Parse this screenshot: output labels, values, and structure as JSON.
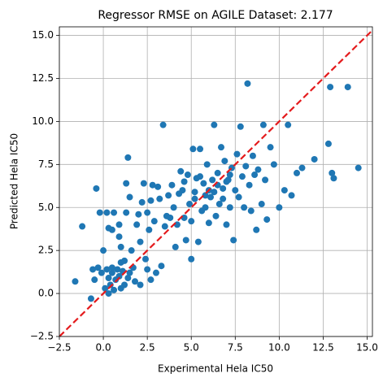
{
  "chart_data": {
    "type": "scatter",
    "title": "Regressor RMSE on AGILE Dataset: 2.177",
    "xlabel": "Experimental Hela IC50",
    "ylabel": "Predicted Hela IC50",
    "color": "#1f77b4",
    "reference_color": "#e41a1c",
    "grid": true,
    "xlim": [
      -2.5,
      15.3
    ],
    "ylim": [
      -2.5,
      15.5
    ],
    "xticks": [
      {
        "value": -2.5,
        "label": "−2.5"
      },
      {
        "value": 0,
        "label": "0.0"
      },
      {
        "value": 2.5,
        "label": "2.5"
      },
      {
        "value": 5,
        "label": "5.0"
      },
      {
        "value": 7.5,
        "label": "7.5"
      },
      {
        "value": 10,
        "label": "10.0"
      },
      {
        "value": 12.5,
        "label": "12.5"
      },
      {
        "value": 15,
        "label": "15.0"
      }
    ],
    "yticks": [
      {
        "value": -2.5,
        "label": "−2.5"
      },
      {
        "value": 0,
        "label": "0.0"
      },
      {
        "value": 2.5,
        "label": "2.5"
      },
      {
        "value": 5,
        "label": "5.0"
      },
      {
        "value": 7.5,
        "label": "7.5"
      },
      {
        "value": 10,
        "label": "10.0"
      },
      {
        "value": 12.5,
        "label": "12.5"
      },
      {
        "value": 15,
        "label": "15.0"
      }
    ],
    "x": [
      -1.6,
      -1.2,
      -0.7,
      -0.5,
      -0.4,
      -0.3,
      -0.2,
      0.0,
      -0.1,
      0.2,
      0.3,
      0.5,
      0.6,
      0.8,
      0.9,
      0.9,
      1.0,
      1.0,
      1.2,
      1.3,
      1.3,
      1.4,
      1.5,
      1.6,
      1.7,
      1.8,
      1.9,
      2.0,
      2.1,
      2.2,
      2.3,
      2.4,
      2.5,
      2.5,
      2.6,
      2.7,
      2.8,
      2.9,
      3.0,
      3.1,
      3.2,
      3.3,
      3.4,
      3.5,
      3.6,
      3.7,
      3.8,
      3.9,
      4.0,
      4.1,
      4.2,
      4.3,
      4.4,
      4.5,
      4.6,
      4.7,
      4.8,
      4.9,
      5.0,
      5.0,
      5.1,
      5.2,
      5.3,
      5.4,
      5.5,
      5.6,
      5.7,
      5.8,
      5.9,
      6.0,
      6.1,
      6.2,
      6.3,
      6.4,
      6.5,
      6.6,
      6.7,
      6.8,
      6.9,
      7.0,
      7.1,
      7.2,
      7.3,
      7.4,
      7.5,
      7.6,
      7.7,
      7.8,
      7.9,
      8.0,
      8.1,
      8.2,
      8.3,
      8.4,
      8.5,
      8.6,
      8.7,
      8.8,
      9.0,
      9.1,
      9.2,
      9.3,
      9.5,
      9.7,
      10.0,
      10.3,
      10.5,
      10.7,
      11.0,
      11.3,
      12.0,
      12.8,
      12.9,
      13.0,
      13.1,
      13.9,
      14.5,
      0.1,
      0.3,
      0.4,
      0.5,
      0.6,
      0.7,
      0.9,
      1.0,
      1.1,
      1.2,
      0.2,
      0.5,
      1.4,
      1.5,
      0.3,
      2.1,
      2.7,
      -0.6,
      5.5,
      6.0,
      6.5,
      7.0,
      5.8,
      6.3,
      7.2,
      6.8,
      5.2,
      4.6
    ],
    "values": [
      0.7,
      3.9,
      -0.3,
      0.8,
      6.1,
      1.5,
      4.7,
      2.5,
      1.2,
      4.7,
      3.8,
      3.7,
      4.7,
      1.4,
      4.0,
      3.3,
      2.7,
      1.8,
      0.5,
      4.7,
      6.4,
      7.9,
      5.6,
      2.5,
      1.5,
      0.7,
      4.0,
      4.6,
      3.0,
      5.3,
      6.4,
      2.0,
      4.7,
      1.4,
      3.7,
      5.4,
      6.3,
      4.2,
      1.2,
      6.2,
      5.5,
      1.6,
      9.8,
      3.9,
      4.5,
      5.7,
      4.4,
      6.3,
      5.0,
      2.7,
      4.0,
      5.8,
      7.1,
      6.0,
      4.4,
      3.1,
      6.9,
      5.2,
      2.0,
      4.2,
      8.4,
      5.9,
      6.7,
      3.0,
      8.4,
      4.8,
      6.4,
      5.7,
      7.5,
      4.1,
      5.6,
      6.6,
      9.8,
      4.5,
      7.0,
      5.2,
      8.5,
      6.1,
      7.7,
      4.0,
      6.6,
      5.0,
      7.3,
      3.1,
      6.0,
      8.1,
      5.6,
      9.7,
      6.8,
      5.0,
      7.4,
      12.2,
      6.3,
      4.8,
      8.0,
      6.9,
      3.7,
      7.2,
      5.2,
      9.8,
      6.6,
      4.3,
      8.5,
      7.5,
      5.0,
      6.0,
      9.8,
      5.7,
      7.0,
      7.3,
      7.8,
      8.7,
      12.0,
      7.0,
      6.7,
      12.0,
      7.3,
      0.3,
      0.9,
      0.5,
      1.2,
      0.2,
      0.8,
      1.0,
      0.3,
      1.3,
      1.9,
      1.4,
      1.5,
      0.9,
      1.2,
      0.0,
      0.5,
      0.8,
      1.4,
      6.8,
      6.0,
      6.3,
      6.5,
      5.0,
      5.9,
      6.9,
      5.5,
      5.5,
      6.5
    ]
  }
}
